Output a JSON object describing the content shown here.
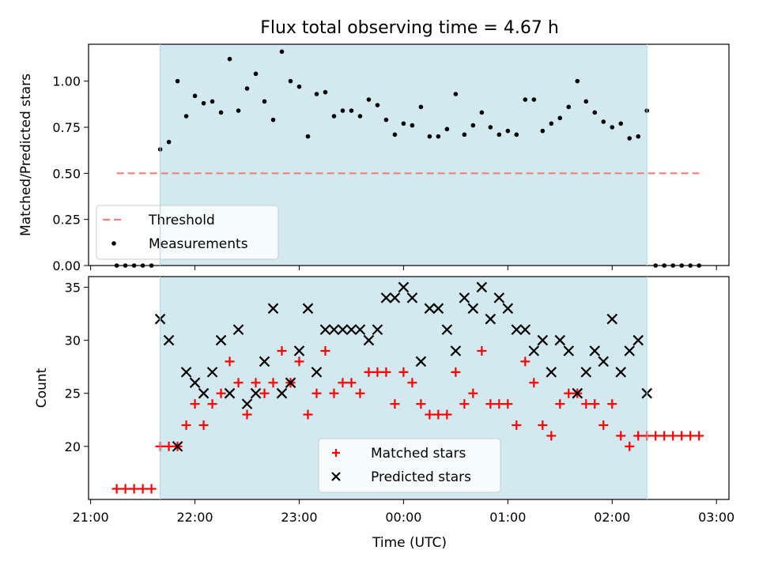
{
  "chart_data": [
    {
      "type": "scatter",
      "title": "Flux total observing time = 4.67 h",
      "xlabel": "",
      "ylabel": "Matched/Predicted stars",
      "xlim": [
        "21:00",
        "03:00"
      ],
      "ylim": [
        0,
        1.2
      ],
      "yticks": [
        "0.00",
        "0.25",
        "0.50",
        "0.75",
        "1.00"
      ],
      "x_tick_labels": [],
      "observing_window": {
        "start": "21:40",
        "end": "02:20",
        "color": "#d3e9f0"
      },
      "threshold": {
        "name": "Threshold",
        "value": 0.5,
        "x_start": "21:15",
        "x_end": "02:50",
        "color": "#f08080",
        "style": "dashed"
      },
      "series": [
        {
          "name": "Measurements",
          "color": "#000000",
          "marker": "dot",
          "x": [
            "21:15",
            "21:20",
            "21:25",
            "21:30",
            "21:35",
            "21:40",
            "21:45",
            "21:50",
            "21:55",
            "22:00",
            "22:05",
            "22:10",
            "22:15",
            "22:20",
            "22:25",
            "22:30",
            "22:35",
            "22:40",
            "22:45",
            "22:50",
            "22:55",
            "23:00",
            "23:05",
            "23:10",
            "23:15",
            "23:20",
            "23:25",
            "23:30",
            "23:35",
            "23:40",
            "23:45",
            "23:50",
            "23:55",
            "00:00",
            "00:05",
            "00:10",
            "00:15",
            "00:20",
            "00:25",
            "00:30",
            "00:35",
            "00:40",
            "00:45",
            "00:50",
            "00:55",
            "01:00",
            "01:05",
            "01:10",
            "01:15",
            "01:20",
            "01:25",
            "01:30",
            "01:35",
            "01:40",
            "01:45",
            "01:50",
            "01:55",
            "02:00",
            "02:05",
            "02:10",
            "02:15",
            "02:20",
            "02:25",
            "02:30",
            "02:35",
            "02:40",
            "02:45",
            "02:50"
          ],
          "y": [
            0,
            0,
            0,
            0,
            0,
            0.63,
            0.67,
            1.0,
            0.81,
            0.92,
            0.88,
            0.89,
            0.83,
            1.12,
            0.84,
            0.96,
            1.04,
            0.89,
            0.79,
            1.16,
            1.0,
            0.97,
            0.7,
            0.93,
            0.94,
            0.81,
            0.84,
            0.84,
            0.81,
            0.9,
            0.87,
            0.79,
            0.71,
            0.77,
            0.76,
            0.86,
            0.7,
            0.7,
            0.74,
            0.93,
            0.71,
            0.76,
            0.83,
            0.75,
            0.71,
            0.73,
            0.71,
            0.9,
            0.9,
            0.73,
            0.77,
            0.8,
            0.86,
            1.0,
            0.89,
            0.83,
            0.78,
            0.75,
            0.77,
            0.69,
            0.7,
            0.84,
            0,
            0,
            0,
            0,
            0,
            0
          ]
        }
      ],
      "legend": {
        "location": "lower-left",
        "entries": [
          "Threshold",
          "Measurements"
        ]
      }
    },
    {
      "type": "scatter",
      "title": "",
      "xlabel": "Time (UTC)",
      "ylabel": "Count",
      "xlim": [
        "21:00",
        "03:00"
      ],
      "ylim": [
        15,
        36
      ],
      "yticks": [
        "20",
        "25",
        "30",
        "35"
      ],
      "x_tick_labels": [
        "21:00",
        "22:00",
        "23:00",
        "00:00",
        "01:00",
        "02:00",
        "03:00"
      ],
      "observing_window": {
        "start": "21:40",
        "end": "02:20",
        "color": "#d3e9f0"
      },
      "series": [
        {
          "name": "Matched stars",
          "color": "#ff0000",
          "marker": "plus",
          "x": [
            "21:15",
            "21:20",
            "21:25",
            "21:30",
            "21:35",
            "21:40",
            "21:45",
            "21:50",
            "21:55",
            "22:00",
            "22:05",
            "22:10",
            "22:15",
            "22:20",
            "22:25",
            "22:30",
            "22:35",
            "22:40",
            "22:45",
            "22:50",
            "22:55",
            "23:00",
            "23:05",
            "23:10",
            "23:15",
            "23:20",
            "23:25",
            "23:30",
            "23:35",
            "23:40",
            "23:45",
            "23:50",
            "23:55",
            "00:00",
            "00:05",
            "00:10",
            "00:15",
            "00:20",
            "00:25",
            "00:30",
            "00:35",
            "00:40",
            "00:45",
            "00:50",
            "00:55",
            "01:00",
            "01:05",
            "01:10",
            "01:15",
            "01:20",
            "01:25",
            "01:30",
            "01:35",
            "01:40",
            "01:45",
            "01:50",
            "01:55",
            "02:00",
            "02:05",
            "02:10",
            "02:15",
            "02:20",
            "02:25",
            "02:30",
            "02:35",
            "02:40",
            "02:45",
            "02:50"
          ],
          "y": [
            16,
            16,
            16,
            16,
            16,
            20,
            20,
            20,
            22,
            24,
            22,
            24,
            25,
            28,
            26,
            23,
            26,
            25,
            26,
            29,
            26,
            28,
            23,
            25,
            29,
            25,
            26,
            26,
            25,
            27,
            27,
            27,
            24,
            27,
            26,
            24,
            23,
            23,
            23,
            27,
            24,
            25,
            29,
            24,
            24,
            24,
            22,
            28,
            26,
            22,
            21,
            24,
            25,
            25,
            24,
            24,
            22,
            24,
            21,
            20,
            21,
            21,
            21,
            21,
            21,
            21,
            21,
            21
          ]
        },
        {
          "name": "Predicted stars",
          "color": "#000000",
          "marker": "x",
          "x": [
            "21:40",
            "21:45",
            "21:50",
            "21:55",
            "22:00",
            "22:05",
            "22:10",
            "22:15",
            "22:20",
            "22:25",
            "22:30",
            "22:35",
            "22:40",
            "22:45",
            "22:50",
            "22:55",
            "23:00",
            "23:05",
            "23:10",
            "23:15",
            "23:20",
            "23:25",
            "23:30",
            "23:35",
            "23:40",
            "23:45",
            "23:50",
            "23:55",
            "00:00",
            "00:05",
            "00:10",
            "00:15",
            "00:20",
            "00:25",
            "00:30",
            "00:35",
            "00:40",
            "00:45",
            "00:50",
            "00:55",
            "01:00",
            "01:05",
            "01:10",
            "01:15",
            "01:20",
            "01:25",
            "01:30",
            "01:35",
            "01:40",
            "01:45",
            "01:50",
            "01:55",
            "02:00",
            "02:05",
            "02:10",
            "02:15",
            "02:20"
          ],
          "y": [
            32,
            30,
            20,
            27,
            26,
            25,
            27,
            30,
            25,
            31,
            24,
            25,
            28,
            33,
            25,
            26,
            29,
            33,
            27,
            31,
            31,
            31,
            31,
            31,
            30,
            31,
            34,
            34,
            35,
            34,
            28,
            33,
            33,
            31,
            29,
            34,
            33,
            35,
            32,
            34,
            33,
            31,
            31,
            29,
            30,
            27,
            30,
            29,
            25,
            27,
            29,
            28,
            32,
            27,
            29,
            30,
            25
          ]
        }
      ],
      "legend": {
        "location": "lower-center",
        "entries": [
          "Matched stars",
          "Predicted stars"
        ]
      }
    }
  ]
}
